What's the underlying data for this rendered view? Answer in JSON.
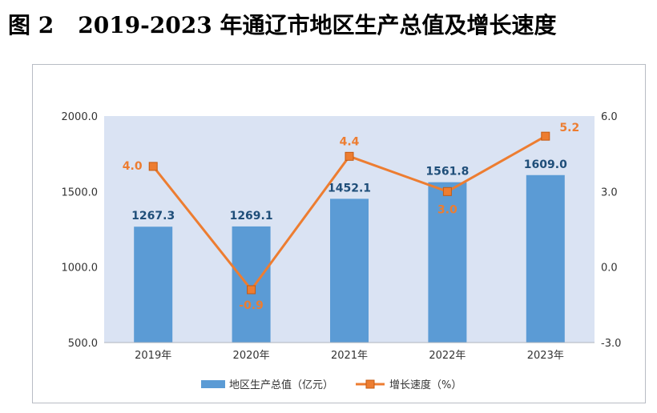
{
  "figure": {
    "label": "图 2",
    "title": "2019-2023 年通辽市地区生产总值及增长速度"
  },
  "chart_data": {
    "type": "bar",
    "categories": [
      "2019年",
      "2020年",
      "2021年",
      "2022年",
      "2023年"
    ],
    "series": [
      {
        "name": "地区生产总值（亿元）",
        "type": "bar",
        "axis": "left",
        "values": [
          1267.3,
          1269.1,
          1452.1,
          1561.8,
          1609.0
        ],
        "labels": [
          "1267.3",
          "1269.1",
          "1452.1",
          "1561.8",
          "1609.0"
        ],
        "color": "#5b9bd5"
      },
      {
        "name": "增长速度（%）",
        "type": "line",
        "axis": "right",
        "values": [
          4.0,
          -0.9,
          4.4,
          3.0,
          5.2
        ],
        "labels": [
          "4.0",
          "-0.9",
          "4.4",
          "3.0",
          "5.2"
        ],
        "color": "#ed7d31"
      }
    ],
    "y_left": {
      "ylim": [
        500,
        2000
      ],
      "ticks": [
        "500.0",
        "1000.0",
        "1500.0",
        "2000.0"
      ]
    },
    "y_right": {
      "ylim": [
        -3,
        6
      ],
      "ticks": [
        "-3.0",
        "0.0",
        "3.0",
        "6.0"
      ]
    },
    "plot_background": "#dae3f3",
    "legend_position": "bottom",
    "grid": false
  }
}
